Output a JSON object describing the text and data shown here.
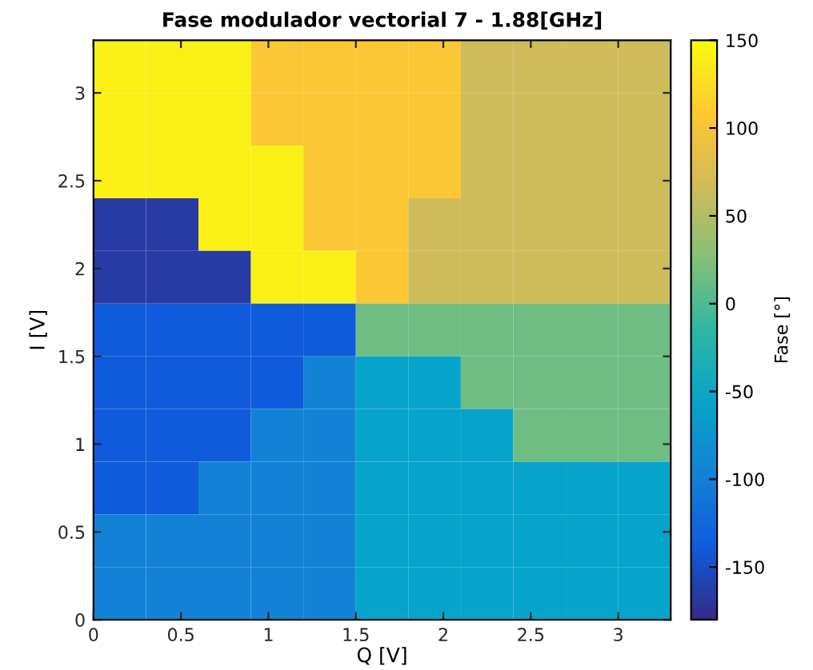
{
  "chart_data": {
    "type": "heatmap",
    "title": "Fase modulador vectorial 7 - 1.88[GHz]",
    "xlabel": "Q [V]",
    "ylabel": "I [V]",
    "clabel": "Fase [°]",
    "x": [
      0.15,
      0.45,
      0.75,
      1.05,
      1.35,
      1.65,
      1.95,
      2.25,
      2.55,
      2.85,
      3.15
    ],
    "y": [
      3.15,
      2.85,
      2.55,
      2.25,
      1.95,
      1.65,
      1.35,
      1.05,
      0.75,
      0.45,
      0.15
    ],
    "cells": [
      [
        140,
        140,
        140,
        105,
        105,
        105,
        105,
        65,
        65,
        65,
        65
      ],
      [
        140,
        140,
        140,
        105,
        105,
        105,
        105,
        65,
        65,
        65,
        65
      ],
      [
        140,
        140,
        140,
        140,
        105,
        105,
        105,
        65,
        65,
        65,
        65
      ],
      [
        -165,
        -165,
        140,
        140,
        105,
        105,
        65,
        65,
        65,
        65,
        65
      ],
      [
        -165,
        -165,
        -165,
        140,
        140,
        105,
        65,
        65,
        65,
        65,
        65
      ],
      [
        -140,
        -140,
        -140,
        -140,
        -140,
        15,
        15,
        15,
        15,
        15,
        15
      ],
      [
        -140,
        -140,
        -140,
        -140,
        -95,
        -55,
        -55,
        15,
        15,
        15,
        15
      ],
      [
        -140,
        -140,
        -140,
        -95,
        -95,
        -55,
        -55,
        -55,
        15,
        15,
        15
      ],
      [
        -140,
        -140,
        -95,
        -95,
        -95,
        -55,
        -55,
        -55,
        -55,
        -55,
        -55
      ],
      [
        -95,
        -95,
        -95,
        -95,
        -95,
        -55,
        -55,
        -55,
        -55,
        -55,
        -55
      ],
      [
        -95,
        -95,
        -95,
        -95,
        -95,
        -55,
        -55,
        -55,
        -55,
        -55,
        -55
      ]
    ],
    "xlim": [
      0,
      3.3
    ],
    "ylim": [
      0,
      3.3
    ],
    "xticks": [
      0,
      0.5,
      1,
      1.5,
      2,
      2.5,
      3
    ],
    "yticks": [
      0,
      0.5,
      1,
      1.5,
      2,
      2.5,
      3
    ],
    "clim": [
      -180,
      150
    ],
    "cticks": [
      -150,
      -100,
      -50,
      0,
      50,
      100,
      150
    ],
    "colors": [
      "#352a87",
      "#0f5cdd",
      "#1481d6",
      "#06a4ca",
      "#2eb7a4",
      "#87bf77",
      "#d1bb59",
      "#fec832",
      "#f9fb0e"
    ]
  }
}
